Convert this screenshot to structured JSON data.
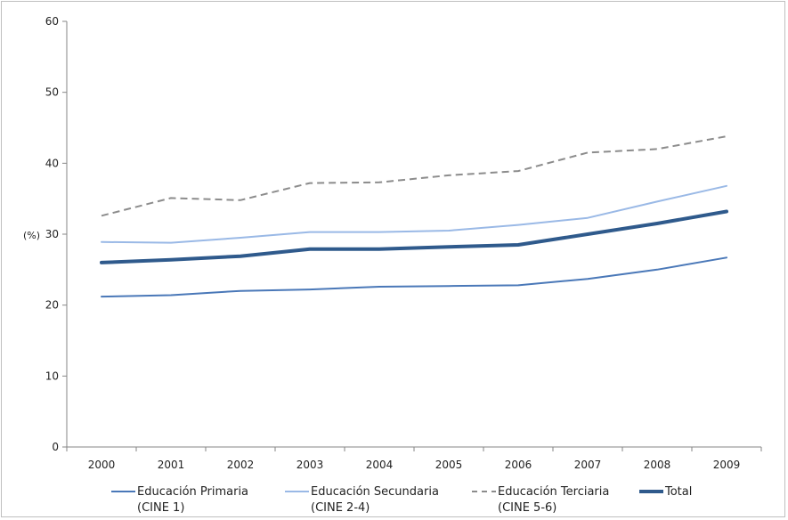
{
  "chart_data": {
    "type": "line",
    "title": "",
    "xlabel": "",
    "ylabel": "(%)",
    "ylim": [
      0,
      60
    ],
    "yticks": [
      "0",
      "10",
      "20",
      "30",
      "40",
      "50",
      "60"
    ],
    "categories": [
      "2000",
      "2001",
      "2002",
      "2003",
      "2004",
      "2005",
      "2006",
      "2007",
      "2008",
      "2009"
    ],
    "grid": false,
    "legend_position": "bottom",
    "series": [
      {
        "name": "Educación Primaria (CINE 1)",
        "legend_lines": [
          "Educación Primaria",
          "(CINE 1)"
        ],
        "color": "#4a78b8",
        "style": "solid",
        "values": [
          21.2,
          21.4,
          22.0,
          22.2,
          22.6,
          22.7,
          22.8,
          23.7,
          25.0,
          26.7
        ]
      },
      {
        "name": "Educación Secundaria (CINE 2-4)",
        "legend_lines": [
          "Educación Secundaria",
          "(CINE 2-4)"
        ],
        "color": "#9ab9e6",
        "style": "solid",
        "values": [
          28.9,
          28.8,
          29.5,
          30.3,
          30.3,
          30.5,
          31.3,
          32.3,
          34.6,
          36.8
        ]
      },
      {
        "name": "Educación Terciaria (CINE 5-6)",
        "legend_lines": [
          "Educación Terciaria",
          "(CINE 5-6)"
        ],
        "color": "#8c8c8c",
        "style": "dashed",
        "values": [
          32.6,
          35.1,
          34.8,
          37.2,
          37.3,
          38.3,
          38.9,
          41.5,
          42.0,
          43.8
        ]
      },
      {
        "name": "Total",
        "legend_lines": [
          "Total"
        ],
        "color": "#2f5a8c",
        "style": "bold",
        "values": [
          26.0,
          26.4,
          26.9,
          27.9,
          27.9,
          28.2,
          28.5,
          30.0,
          31.5,
          33.2
        ]
      }
    ]
  }
}
